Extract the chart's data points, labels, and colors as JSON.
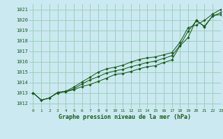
{
  "xlabel": "Graphe pression niveau de la mer (hPa)",
  "bg_color": "#cbe9f0",
  "grid_color": "#9dcfbe",
  "line_color": "#1a5c1a",
  "xlim": [
    -0.5,
    23
  ],
  "ylim": [
    1011.5,
    1021.5
  ],
  "yticks": [
    1012,
    1013,
    1014,
    1015,
    1016,
    1017,
    1018,
    1019,
    1020,
    1021
  ],
  "xticks": [
    0,
    1,
    2,
    3,
    4,
    5,
    6,
    7,
    8,
    9,
    10,
    11,
    12,
    13,
    14,
    15,
    16,
    17,
    18,
    19,
    20,
    21,
    22,
    23
  ],
  "series1": [
    1013.0,
    1012.3,
    1012.5,
    1013.0,
    1013.1,
    1013.3,
    1013.6,
    1013.8,
    1014.1,
    1014.4,
    1014.75,
    1014.85,
    1015.05,
    1015.3,
    1015.5,
    1015.6,
    1015.9,
    1016.15,
    1017.5,
    1018.3,
    1020.0,
    1019.3,
    1020.4,
    1020.5
  ],
  "series2": [
    1013.0,
    1012.3,
    1012.5,
    1013.0,
    1013.1,
    1013.4,
    1013.85,
    1014.25,
    1014.55,
    1014.9,
    1015.1,
    1015.25,
    1015.5,
    1015.7,
    1015.9,
    1016.05,
    1016.3,
    1016.55,
    1017.55,
    1018.9,
    1019.9,
    1019.4,
    1020.35,
    1020.7
  ],
  "series3": [
    1013.0,
    1012.3,
    1012.5,
    1013.05,
    1013.15,
    1013.55,
    1014.05,
    1014.5,
    1015.0,
    1015.3,
    1015.45,
    1015.65,
    1015.95,
    1016.2,
    1016.35,
    1016.45,
    1016.65,
    1016.85,
    1017.85,
    1019.25,
    1019.5,
    1019.95,
    1020.55,
    1021.0
  ]
}
